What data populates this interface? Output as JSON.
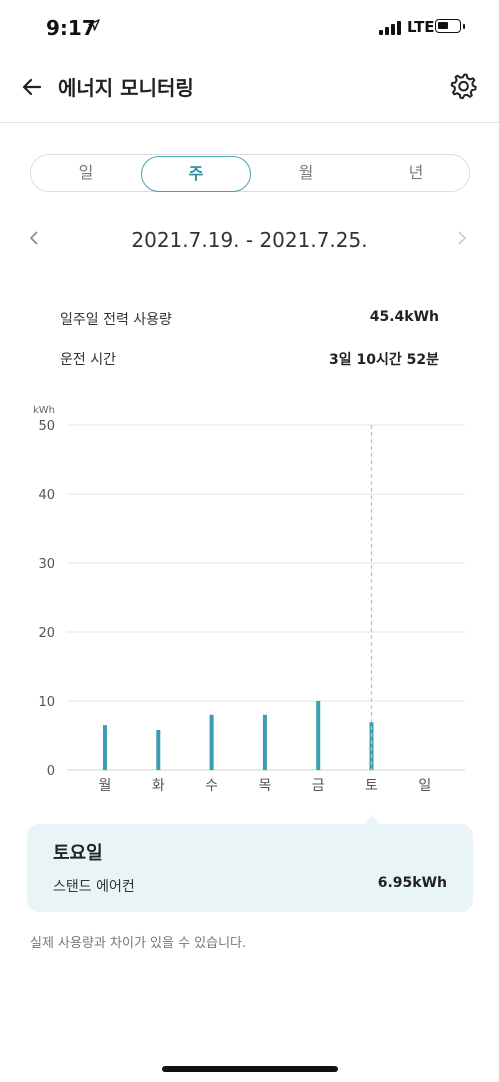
{
  "status_bar": {
    "time": "9:17",
    "network": "LTE"
  },
  "header": {
    "title": "에너지 모니터링"
  },
  "period_tabs": [
    {
      "label": "일",
      "active": false
    },
    {
      "label": "주",
      "active": true
    },
    {
      "label": "월",
      "active": false
    },
    {
      "label": "년",
      "active": false
    }
  ],
  "date_range": "2021.7.19. - 2021.7.25.",
  "stats": {
    "weekly_usage_label": "일주일 전력 사용량",
    "weekly_usage_value": "45.4kWh",
    "runtime_label": "운전 시간",
    "runtime_value": "3일 10시간 52분"
  },
  "chart_data": {
    "type": "bar",
    "unit_label": "kWh",
    "categories": [
      "월",
      "화",
      "수",
      "목",
      "금",
      "토",
      "일"
    ],
    "values": [
      6.5,
      5.8,
      8.0,
      8.0,
      10.0,
      6.95,
      null
    ],
    "ylim": [
      0,
      50
    ],
    "yticks": [
      0,
      10,
      20,
      30,
      40,
      50
    ],
    "selected_index": 5,
    "bar_color": "#3b9db1",
    "selection_line_color": "#f0c040",
    "grid": true
  },
  "tooltip": {
    "title": "토요일",
    "device": "스탠드 에어컨",
    "value": "6.95kWh"
  },
  "disclaimer": "실제 사용량과 차이가 있을 수 있습니다."
}
